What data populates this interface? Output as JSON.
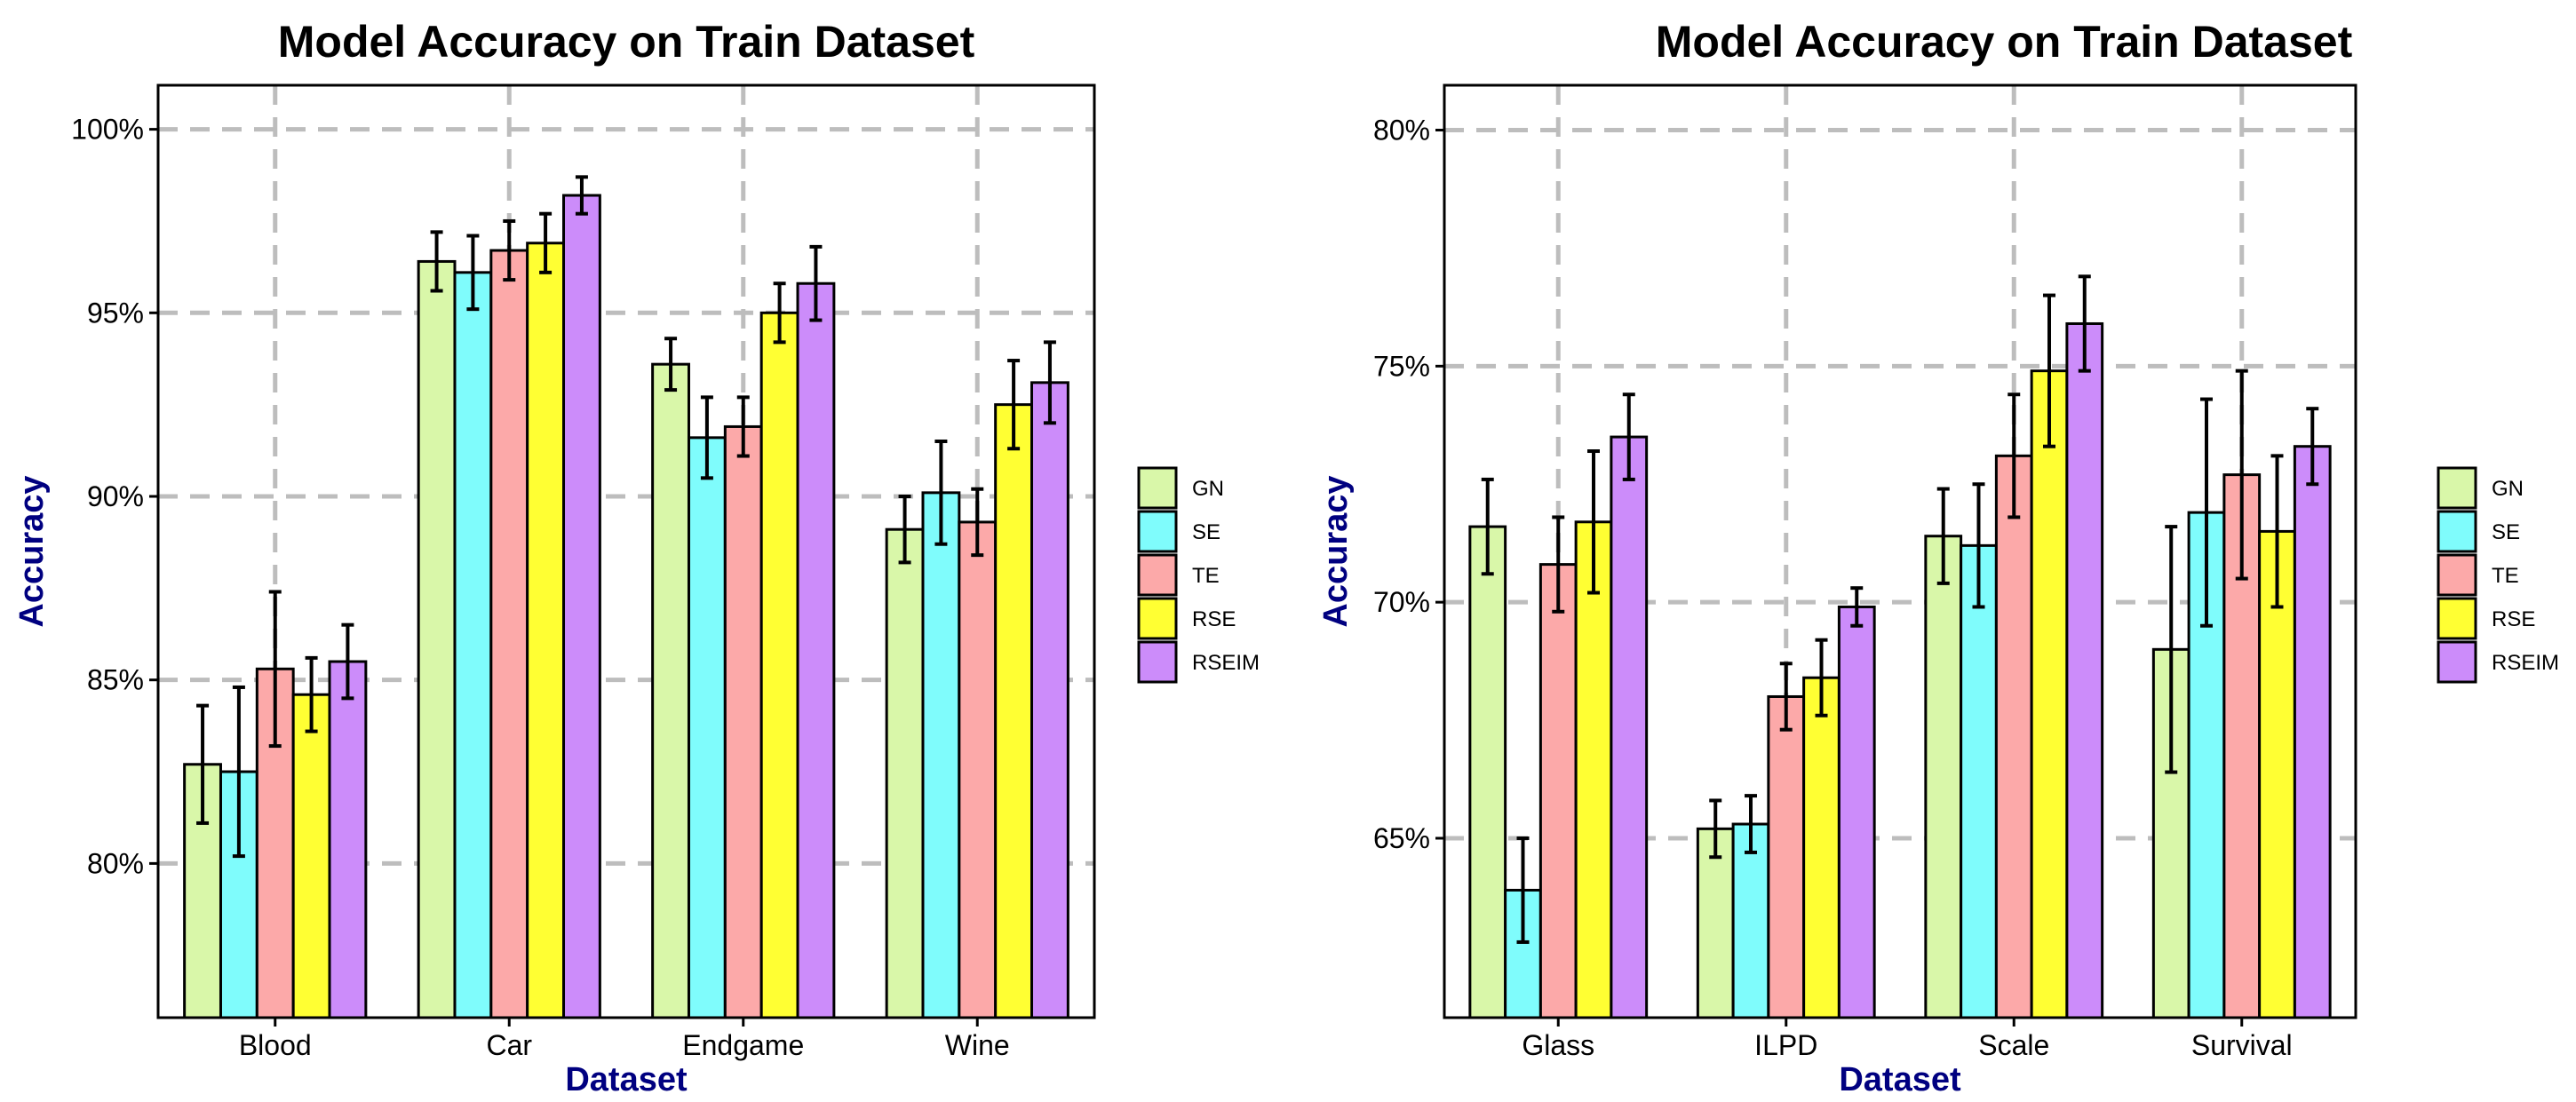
{
  "chart_data": [
    {
      "type": "bar",
      "title": "Model Accuracy on Train Dataset",
      "xlabel": "Dataset",
      "ylabel": "Accuracy",
      "ylim": [
        75.8,
        101.2
      ],
      "yticks": [
        80,
        85,
        90,
        95,
        100
      ],
      "ytick_labels": [
        "80%",
        "85%",
        "90%",
        "95%",
        "100%"
      ],
      "grid": true,
      "legend_position": "right",
      "categories": [
        "Blood",
        "Car",
        "Endgame",
        "Wine"
      ],
      "series": [
        {
          "name": "GN",
          "color": "#d9f7a9",
          "values": [
            82.7,
            96.4,
            93.6,
            89.1
          ],
          "errors": [
            1.6,
            0.8,
            0.7,
            0.9
          ]
        },
        {
          "name": "SE",
          "color": "#7ffcfc",
          "values": [
            82.5,
            96.1,
            91.6,
            90.1
          ],
          "errors": [
            2.3,
            1.0,
            1.1,
            1.4
          ]
        },
        {
          "name": "TE",
          "color": "#fca9a9",
          "values": [
            85.3,
            96.7,
            91.9,
            89.3
          ],
          "errors": [
            2.1,
            0.8,
            0.8,
            0.9
          ]
        },
        {
          "name": "RSE",
          "color": "#ffff33",
          "values": [
            84.6,
            96.9,
            95.0,
            92.5
          ],
          "errors": [
            1.0,
            0.8,
            0.8,
            1.2
          ]
        },
        {
          "name": "RSEIM",
          "color": "#cc8cfa",
          "values": [
            85.5,
            98.2,
            95.8,
            93.1
          ],
          "errors": [
            1.0,
            0.5,
            1.0,
            1.1
          ]
        }
      ]
    },
    {
      "type": "bar",
      "title": "Model Accuracy on Train Dataset",
      "xlabel": "Dataset",
      "ylabel": "Accuracy",
      "ylim": [
        61.2,
        80.95
      ],
      "yticks": [
        65,
        70,
        75,
        80
      ],
      "ytick_labels": [
        "65%",
        "70%",
        "75%",
        "80%"
      ],
      "grid": true,
      "legend_position": "right",
      "categories": [
        "Glass",
        "ILPD",
        "Scale",
        "Survival"
      ],
      "series": [
        {
          "name": "GN",
          "color": "#d9f7a9",
          "values": [
            71.6,
            65.2,
            71.4,
            69.0
          ],
          "errors": [
            1.0,
            0.6,
            1.0,
            2.6
          ]
        },
        {
          "name": "SE",
          "color": "#7ffcfc",
          "values": [
            63.9,
            65.3,
            71.2,
            71.9
          ],
          "errors": [
            1.1,
            0.6,
            1.3,
            2.4
          ]
        },
        {
          "name": "TE",
          "color": "#fca9a9",
          "values": [
            70.8,
            68.0,
            73.1,
            72.7
          ],
          "errors": [
            1.0,
            0.7,
            1.3,
            2.2
          ]
        },
        {
          "name": "RSE",
          "color": "#ffff33",
          "values": [
            71.7,
            68.4,
            74.9,
            71.5
          ],
          "errors": [
            1.5,
            0.8,
            1.6,
            1.6
          ]
        },
        {
          "name": "RSEIM",
          "color": "#cc8cfa",
          "values": [
            73.5,
            69.9,
            75.9,
            73.3
          ],
          "errors": [
            0.9,
            0.4,
            1.0,
            0.8
          ]
        }
      ]
    }
  ]
}
